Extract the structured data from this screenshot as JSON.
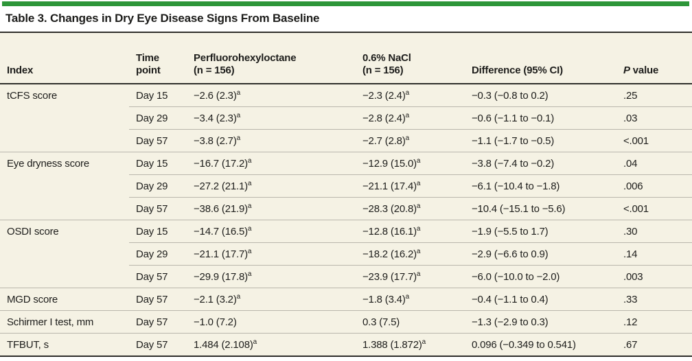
{
  "colors": {
    "accent_green": "#2d9639",
    "table_background": "#f5f2e4",
    "text": "#1d1d1b"
  },
  "title": "Table 3. Changes in Dry Eye Disease Signs From Baseline",
  "table": {
    "headers": [
      {
        "id": "index",
        "lines": [
          "Index"
        ],
        "italic_chars": 0
      },
      {
        "id": "time",
        "lines": [
          "Time",
          "point"
        ],
        "italic_chars": 0
      },
      {
        "id": "pfho",
        "lines": [
          "Perfluorohexyloctane",
          "(n = 156)"
        ],
        "italic_chars": 0
      },
      {
        "id": "nacl",
        "lines": [
          "0.6% NaCl",
          "(n = 156)"
        ],
        "italic_chars": 0
      },
      {
        "id": "diff",
        "lines": [
          "Difference (95% CI)"
        ],
        "italic_chars": 0
      },
      {
        "id": "p",
        "lines": [
          "P value"
        ],
        "italic_chars": 1
      }
    ],
    "footnote_marker": "a",
    "rows": [
      {
        "group_start": true,
        "index": "tCFS score",
        "time": "Day 15",
        "pfho": "−2.6 (2.3)",
        "pfho_sup": "a",
        "nacl": "−2.3 (2.4)",
        "nacl_sup": "a",
        "diff": "−0.3 (−0.8 to 0.2)",
        "p": ".25"
      },
      {
        "group_start": false,
        "index": "",
        "time": "Day 29",
        "pfho": "−3.4 (2.3)",
        "pfho_sup": "a",
        "nacl": "−2.8 (2.4)",
        "nacl_sup": "a",
        "diff": "−0.6 (−1.1 to −0.1)",
        "p": ".03"
      },
      {
        "group_start": false,
        "index": "",
        "time": "Day 57",
        "pfho": "−3.8 (2.7)",
        "pfho_sup": "a",
        "nacl": "−2.7 (2.8)",
        "nacl_sup": "a",
        "diff": "−1.1 (−1.7 to −0.5)",
        "p": "<.001"
      },
      {
        "group_start": true,
        "index": "Eye dryness score",
        "time": "Day 15",
        "pfho": "−16.7 (17.2)",
        "pfho_sup": "a",
        "nacl": "−12.9 (15.0)",
        "nacl_sup": "a",
        "diff": "−3.8 (−7.4 to −0.2)",
        "p": ".04"
      },
      {
        "group_start": false,
        "index": "",
        "time": "Day 29",
        "pfho": "−27.2 (21.1)",
        "pfho_sup": "a",
        "nacl": "−21.1 (17.4)",
        "nacl_sup": "a",
        "diff": "−6.1 (−10.4 to −1.8)",
        "p": ".006"
      },
      {
        "group_start": false,
        "index": "",
        "time": "Day 57",
        "pfho": "−38.6 (21.9)",
        "pfho_sup": "a",
        "nacl": "−28.3 (20.8)",
        "nacl_sup": "a",
        "diff": "−10.4 (−15.1 to −5.6)",
        "p": "<.001"
      },
      {
        "group_start": true,
        "index": "OSDI score",
        "time": "Day 15",
        "pfho": "−14.7 (16.5)",
        "pfho_sup": "a",
        "nacl": "−12.8 (16.1)",
        "nacl_sup": "a",
        "diff": "−1.9 (−5.5 to 1.7)",
        "p": ".30"
      },
      {
        "group_start": false,
        "index": "",
        "time": "Day 29",
        "pfho": "−21.1 (17.7)",
        "pfho_sup": "a",
        "nacl": "−18.2 (16.2)",
        "nacl_sup": "a",
        "diff": "−2.9 (−6.6 to 0.9)",
        "p": ".14"
      },
      {
        "group_start": false,
        "index": "",
        "time": "Day 57",
        "pfho": "−29.9 (17.8)",
        "pfho_sup": "a",
        "nacl": "−23.9 (17.7)",
        "nacl_sup": "a",
        "diff": "−6.0 (−10.0 to −2.0)",
        "p": ".003"
      },
      {
        "group_start": true,
        "index": "MGD score",
        "time": "Day 57",
        "pfho": "−2.1 (3.2)",
        "pfho_sup": "a",
        "nacl": "−1.8 (3.4)",
        "nacl_sup": "a",
        "diff": "−0.4 (−1.1 to 0.4)",
        "p": ".33"
      },
      {
        "group_start": true,
        "index": "Schirmer I test, mm",
        "time": "Day 57",
        "pfho": "−1.0 (7.2)",
        "pfho_sup": "",
        "nacl": "0.3 (7.5)",
        "nacl_sup": "",
        "diff": "−1.3 (−2.9 to 0.3)",
        "p": ".12"
      },
      {
        "group_start": true,
        "index": "TFBUT, s",
        "time": "Day 57",
        "pfho": "1.484 (2.108)",
        "pfho_sup": "a",
        "nacl": "1.388 (1.872)",
        "nacl_sup": "a",
        "diff": "0.096 (−0.349 to 0.541)",
        "p": ".67"
      }
    ]
  }
}
